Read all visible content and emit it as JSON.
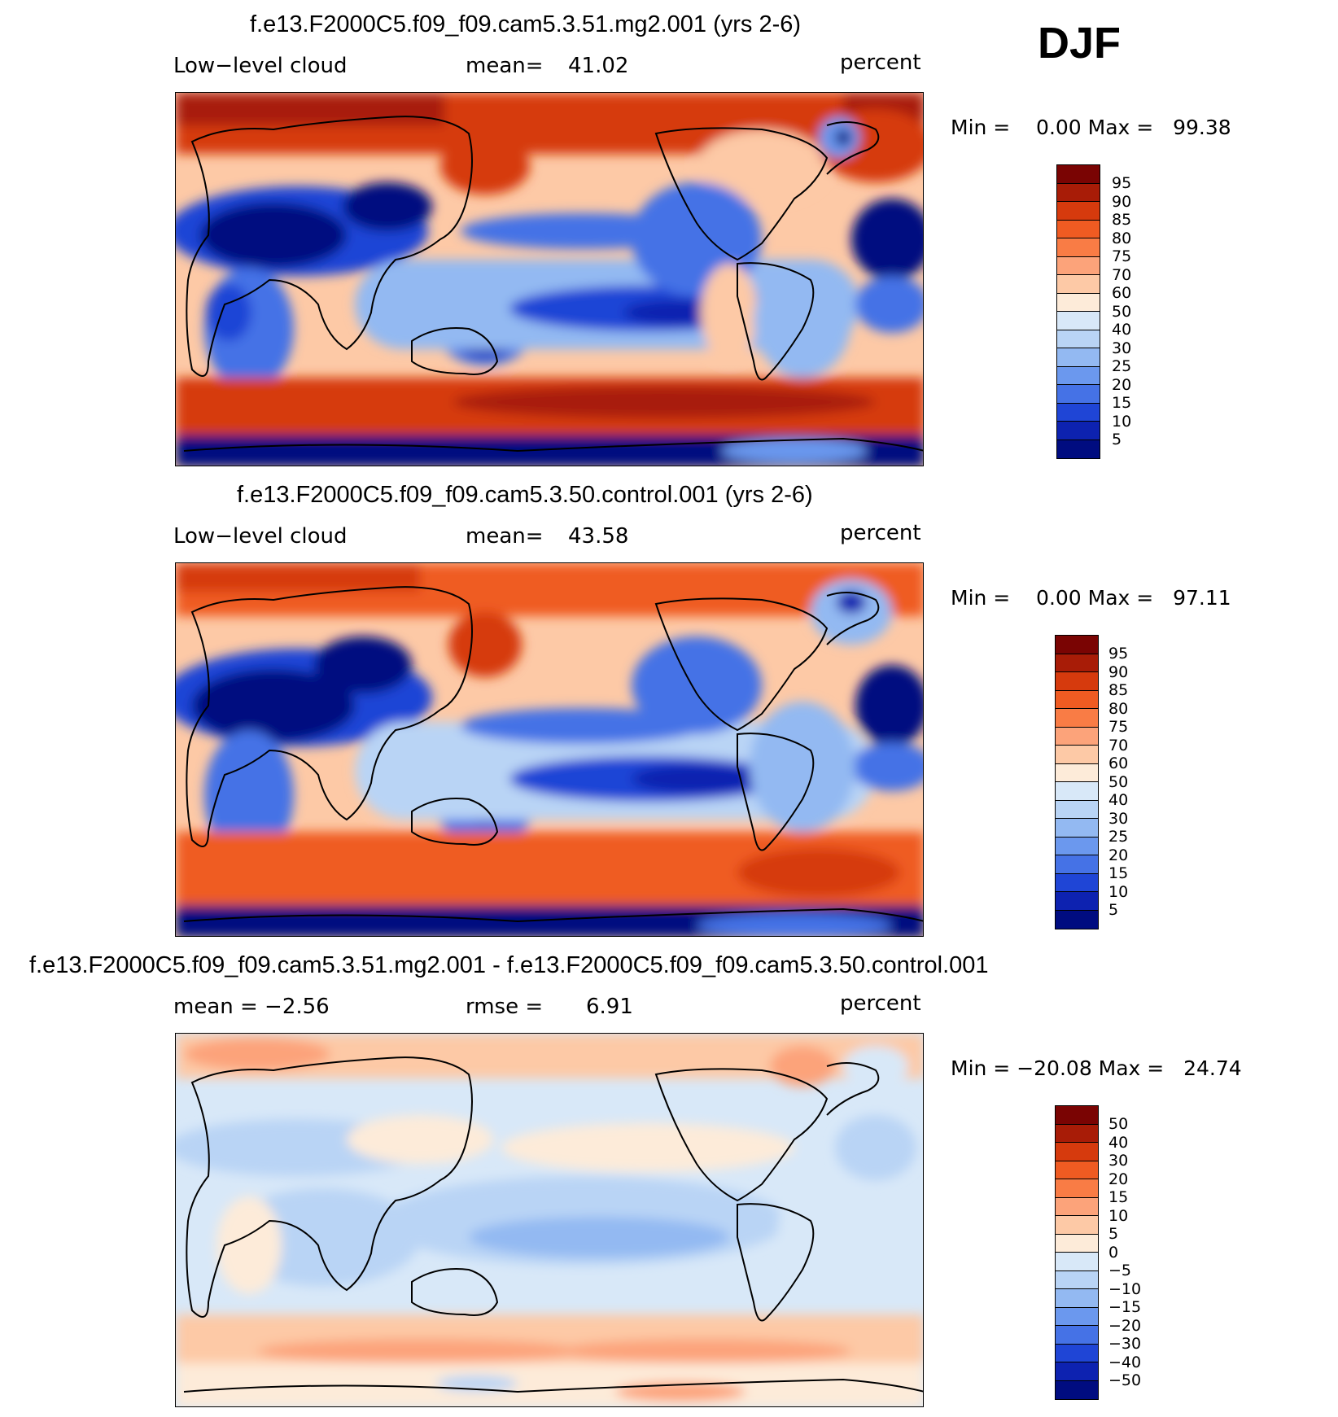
{
  "season": "DJF",
  "unit": "percent",
  "panels": [
    {
      "title": "f.e13.F2000C5.f09_f09.cam5.3.51.mg2.001 (yrs 2-6)",
      "left_label": "Low−level cloud",
      "stat_label": "mean=",
      "stat_value": "41.02",
      "unit_label": "percent",
      "minmax": "Min =    0.00 Max =   99.38",
      "levels": [
        "95",
        "90",
        "85",
        "80",
        "75",
        "70",
        "60",
        "50",
        "40",
        "30",
        "25",
        "20",
        "15",
        "10",
        "5"
      ]
    },
    {
      "title": "f.e13.F2000C5.f09_f09.cam5.3.50.control.001 (yrs 2-6)",
      "left_label": "Low−level cloud",
      "stat_label": "mean=",
      "stat_value": "43.58",
      "unit_label": "percent",
      "minmax": "Min =    0.00 Max =   97.11",
      "levels": [
        "95",
        "90",
        "85",
        "80",
        "75",
        "70",
        "60",
        "50",
        "40",
        "30",
        "25",
        "20",
        "15",
        "10",
        "5"
      ]
    },
    {
      "title": "f.e13.F2000C5.f09_f09.cam5.3.51.mg2.001 - f.e13.F2000C5.f09_f09.cam5.3.50.control.001",
      "left_label": "mean =   −2.56",
      "stat_label": "rmse =",
      "stat_value": "6.91",
      "unit_label": "percent",
      "minmax": "Min = −20.08 Max =   24.74",
      "levels": [
        "50",
        "40",
        "30",
        "20",
        "15",
        "10",
        "5",
        "0",
        "−5",
        "−10",
        "−15",
        "−20",
        "−30",
        "−40",
        "−50"
      ]
    }
  ],
  "colors": {
    "scale": [
      "#7a0403",
      "#a81c07",
      "#d63a0d",
      "#ef5b22",
      "#f97c45",
      "#fca37a",
      "#fdc9a6",
      "#fdebd9",
      "#d8e8f8",
      "#b9d4f5",
      "#93b9f2",
      "#6b98ee",
      "#4572e6",
      "#1f45d6",
      "#0d22b0",
      "#000c80"
    ]
  }
}
